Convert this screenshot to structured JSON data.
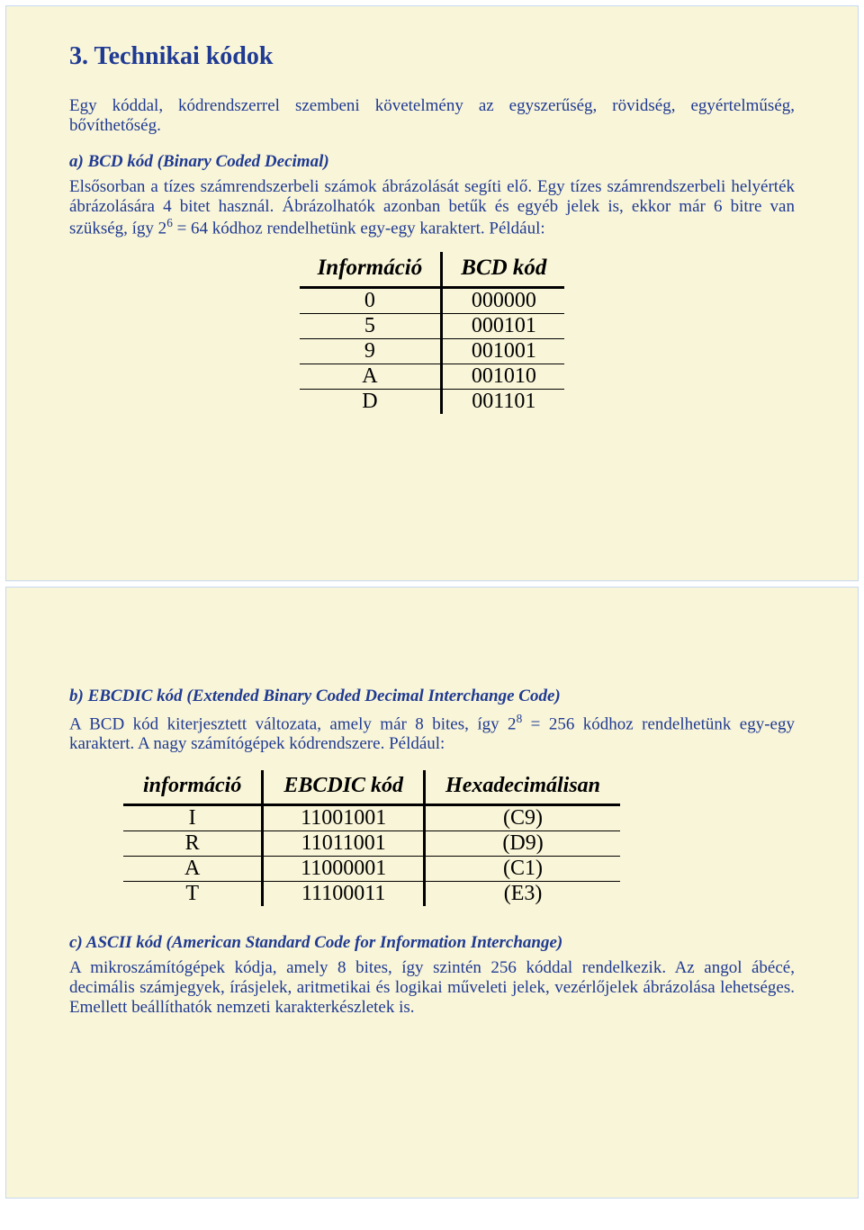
{
  "slide1": {
    "title": "3. Technikai kódok",
    "intro": "Egy kóddal, kódrendszerrel szembeni követelmény az egyszerűség, rövidség, egyértelműség, bővíthetőség.",
    "bcd": {
      "heading": "a) BCD kód (Binary Coded Decimal)",
      "para_html": "Elsősorban a tízes számrendszerbeli számok ábrázolását segíti elő. Egy tízes számrendszerbeli helyérték ábrázolására 4 bitet használ. Ábrázolhatók azonban betűk és egyéb jelek is, ekkor már 6 bitre van szükség, így 2<sup>6</sup> = 64 kódhoz rendelhetünk egy-egy karaktert. Például:",
      "table": {
        "headers": [
          "Információ",
          "BCD kód"
        ],
        "rows": [
          [
            "0",
            "000000"
          ],
          [
            "5",
            "000101"
          ],
          [
            "9",
            "001001"
          ],
          [
            "A",
            "001010"
          ],
          [
            "D",
            "001101"
          ]
        ]
      }
    }
  },
  "slide2": {
    "ebcdic": {
      "heading": "b) EBCDIC kód (Extended Binary Coded Decimal Interchange Code)",
      "para_html": "A BCD kód kiterjesztett változata, amely már 8 bites, így 2<sup>8</sup> = 256 kódhoz rendelhetünk egy-egy karaktert. A nagy számítógépek kódrendszere. Például:",
      "table": {
        "headers": [
          "információ",
          "EBCDIC kód",
          "Hexadecimálisan"
        ],
        "rows": [
          [
            "I",
            "11001001",
            "(C9)"
          ],
          [
            "R",
            "11011001",
            "(D9)"
          ],
          [
            "A",
            "11000001",
            "(C1)"
          ],
          [
            "T",
            "11100011",
            "(E3)"
          ]
        ]
      }
    },
    "ascii": {
      "heading": "c) ASCII kód (American Standard Code for Information Interchange)",
      "para": "A mikroszámítógépek kódja, amely 8 bites, így szintén 256 kóddal rendelkezik. Az angol ábécé, decimális számjegyek, írásjelek, aritmetikai és logikai műveleti jelek, vezérlőjelek ábrázolása lehetséges. Emellett beállíthatók nemzeti karakterkészletek is."
    }
  },
  "colors": {
    "page_bg": "#ffffff",
    "slide_bg": "#f9f5d8",
    "slide_border": "#c6d9f0",
    "text_primary": "#1f3a93",
    "table_text": "#000000",
    "table_border": "#000000"
  }
}
